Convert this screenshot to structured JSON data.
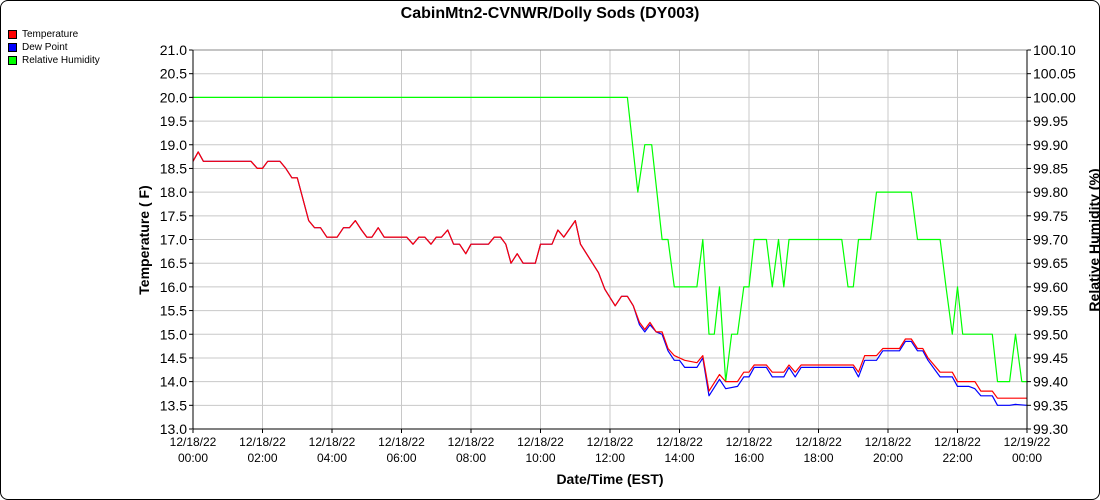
{
  "chart_data": {
    "type": "line",
    "title": "CabinMtn2-CVNWR/Dolly Sods (DY003)",
    "xlabel": "Date/Time (EST)",
    "ylabel": "Temperature ( F)",
    "y2label": "Relative Humidity (%)",
    "ylim": [
      13.0,
      21.0
    ],
    "y2lim": [
      99.3,
      100.1
    ],
    "xlim_hours": [
      0,
      24
    ],
    "grid": true,
    "legend_position": "top-left",
    "y_ticks": [
      "13.0",
      "13.5",
      "14.0",
      "14.5",
      "15.0",
      "15.5",
      "16.0",
      "16.5",
      "17.0",
      "17.5",
      "18.0",
      "18.5",
      "19.0",
      "19.5",
      "20.0",
      "20.5",
      "21.0"
    ],
    "y2_ticks": [
      "99.30",
      "99.35",
      "99.40",
      "99.45",
      "99.50",
      "99.55",
      "99.60",
      "99.65",
      "99.70",
      "99.75",
      "99.80",
      "99.85",
      "99.90",
      "99.95",
      "100.00",
      "100.05",
      "100.10"
    ],
    "x_ticks": [
      {
        "h": 0,
        "date": "12/18/22",
        "time": "00:00"
      },
      {
        "h": 2,
        "date": "12/18/22",
        "time": "02:00"
      },
      {
        "h": 4,
        "date": "12/18/22",
        "time": "04:00"
      },
      {
        "h": 6,
        "date": "12/18/22",
        "time": "06:00"
      },
      {
        "h": 8,
        "date": "12/18/22",
        "time": "08:00"
      },
      {
        "h": 10,
        "date": "12/18/22",
        "time": "10:00"
      },
      {
        "h": 12,
        "date": "12/18/22",
        "time": "12:00"
      },
      {
        "h": 14,
        "date": "12/18/22",
        "time": "14:00"
      },
      {
        "h": 16,
        "date": "12/18/22",
        "time": "16:00"
      },
      {
        "h": 18,
        "date": "12/18/22",
        "time": "18:00"
      },
      {
        "h": 20,
        "date": "12/18/22",
        "time": "20:00"
      },
      {
        "h": 22,
        "date": "12/18/22",
        "time": "22:00"
      },
      {
        "h": 24,
        "date": "12/19/22",
        "time": "00:00"
      }
    ],
    "series": [
      {
        "name": "Temperature",
        "color": "#ff0000",
        "axis": "left",
        "points": [
          [
            0,
            18.65
          ],
          [
            0.15,
            18.85
          ],
          [
            0.3,
            18.65
          ],
          [
            1,
            18.65
          ],
          [
            1.67,
            18.65
          ],
          [
            1.85,
            18.5
          ],
          [
            2,
            18.5
          ],
          [
            2.15,
            18.65
          ],
          [
            2.5,
            18.65
          ],
          [
            2.67,
            18.5
          ],
          [
            2.85,
            18.3
          ],
          [
            3,
            18.3
          ],
          [
            3.33,
            17.4
          ],
          [
            3.5,
            17.25
          ],
          [
            3.67,
            17.25
          ],
          [
            3.85,
            17.05
          ],
          [
            4.15,
            17.05
          ],
          [
            4.33,
            17.25
          ],
          [
            4.5,
            17.25
          ],
          [
            4.67,
            17.4
          ],
          [
            4.85,
            17.2
          ],
          [
            5,
            17.05
          ],
          [
            5.15,
            17.05
          ],
          [
            5.33,
            17.25
          ],
          [
            5.5,
            17.05
          ],
          [
            6,
            17.05
          ],
          [
            6.15,
            17.05
          ],
          [
            6.33,
            16.9
          ],
          [
            6.5,
            17.05
          ],
          [
            6.67,
            17.05
          ],
          [
            6.85,
            16.9
          ],
          [
            7,
            17.05
          ],
          [
            7.15,
            17.05
          ],
          [
            7.33,
            17.2
          ],
          [
            7.5,
            16.9
          ],
          [
            7.67,
            16.9
          ],
          [
            7.85,
            16.7
          ],
          [
            8,
            16.9
          ],
          [
            8.5,
            16.9
          ],
          [
            8.67,
            17.05
          ],
          [
            8.85,
            17.05
          ],
          [
            9,
            16.9
          ],
          [
            9.15,
            16.5
          ],
          [
            9.33,
            16.7
          ],
          [
            9.5,
            16.5
          ],
          [
            9.85,
            16.5
          ],
          [
            10,
            16.9
          ],
          [
            10.33,
            16.9
          ],
          [
            10.5,
            17.2
          ],
          [
            10.67,
            17.05
          ],
          [
            11,
            17.4
          ],
          [
            11.15,
            16.9
          ],
          [
            11.67,
            16.3
          ],
          [
            11.85,
            15.95
          ],
          [
            12.15,
            15.6
          ],
          [
            12.33,
            15.8
          ],
          [
            12.5,
            15.8
          ],
          [
            12.67,
            15.6
          ],
          [
            12.85,
            15.25
          ],
          [
            13,
            15.1
          ],
          [
            13.15,
            15.25
          ],
          [
            13.33,
            15.05
          ],
          [
            13.5,
            15.05
          ],
          [
            13.67,
            14.7
          ],
          [
            13.85,
            14.55
          ],
          [
            14,
            14.5
          ],
          [
            14.15,
            14.45
          ],
          [
            14.5,
            14.4
          ],
          [
            14.67,
            14.55
          ],
          [
            14.85,
            13.8
          ],
          [
            15.15,
            14.15
          ],
          [
            15.33,
            14.0
          ],
          [
            15.67,
            14.0
          ],
          [
            15.85,
            14.2
          ],
          [
            16,
            14.2
          ],
          [
            16.15,
            14.35
          ],
          [
            16.5,
            14.35
          ],
          [
            16.67,
            14.2
          ],
          [
            17,
            14.2
          ],
          [
            17.15,
            14.35
          ],
          [
            17.33,
            14.2
          ],
          [
            17.5,
            14.35
          ],
          [
            18.5,
            14.35
          ],
          [
            19,
            14.35
          ],
          [
            19.15,
            14.2
          ],
          [
            19.33,
            14.55
          ],
          [
            19.67,
            14.55
          ],
          [
            19.85,
            14.7
          ],
          [
            20.33,
            14.7
          ],
          [
            20.5,
            14.9
          ],
          [
            20.67,
            14.9
          ],
          [
            20.85,
            14.7
          ],
          [
            21,
            14.7
          ],
          [
            21.15,
            14.5
          ],
          [
            21.5,
            14.2
          ],
          [
            21.85,
            14.2
          ],
          [
            22,
            14.0
          ],
          [
            22.33,
            14.0
          ],
          [
            22.5,
            14.0
          ],
          [
            22.67,
            13.8
          ],
          [
            23,
            13.8
          ],
          [
            23.15,
            13.65
          ],
          [
            23.5,
            13.65
          ],
          [
            24,
            13.65
          ]
        ]
      },
      {
        "name": "Dew Point",
        "color": "#0000ff",
        "axis": "left",
        "points": [
          [
            0,
            18.65
          ],
          [
            0.15,
            18.85
          ],
          [
            0.3,
            18.65
          ],
          [
            1,
            18.65
          ],
          [
            1.67,
            18.65
          ],
          [
            1.85,
            18.5
          ],
          [
            2,
            18.5
          ],
          [
            2.15,
            18.65
          ],
          [
            2.5,
            18.65
          ],
          [
            2.67,
            18.5
          ],
          [
            2.85,
            18.3
          ],
          [
            3,
            18.3
          ],
          [
            3.33,
            17.4
          ],
          [
            3.5,
            17.25
          ],
          [
            3.67,
            17.25
          ],
          [
            3.85,
            17.05
          ],
          [
            4.15,
            17.05
          ],
          [
            4.33,
            17.25
          ],
          [
            4.5,
            17.25
          ],
          [
            4.67,
            17.4
          ],
          [
            4.85,
            17.2
          ],
          [
            5,
            17.05
          ],
          [
            5.15,
            17.05
          ],
          [
            5.33,
            17.25
          ],
          [
            5.5,
            17.05
          ],
          [
            6,
            17.05
          ],
          [
            6.15,
            17.05
          ],
          [
            6.33,
            16.9
          ],
          [
            6.5,
            17.05
          ],
          [
            6.67,
            17.05
          ],
          [
            6.85,
            16.9
          ],
          [
            7,
            17.05
          ],
          [
            7.15,
            17.05
          ],
          [
            7.33,
            17.2
          ],
          [
            7.5,
            16.9
          ],
          [
            7.67,
            16.9
          ],
          [
            7.85,
            16.7
          ],
          [
            8,
            16.9
          ],
          [
            8.5,
            16.9
          ],
          [
            8.67,
            17.05
          ],
          [
            8.85,
            17.05
          ],
          [
            9,
            16.9
          ],
          [
            9.15,
            16.5
          ],
          [
            9.33,
            16.7
          ],
          [
            9.5,
            16.5
          ],
          [
            9.85,
            16.5
          ],
          [
            10,
            16.9
          ],
          [
            10.33,
            16.9
          ],
          [
            10.5,
            17.2
          ],
          [
            10.67,
            17.05
          ],
          [
            11,
            17.4
          ],
          [
            11.15,
            16.9
          ],
          [
            11.67,
            16.3
          ],
          [
            11.85,
            15.95
          ],
          [
            12.15,
            15.6
          ],
          [
            12.33,
            15.8
          ],
          [
            12.5,
            15.8
          ],
          [
            12.67,
            15.6
          ],
          [
            12.85,
            15.2
          ],
          [
            13,
            15.05
          ],
          [
            13.15,
            15.2
          ],
          [
            13.33,
            15.05
          ],
          [
            13.5,
            15.0
          ],
          [
            13.67,
            14.65
          ],
          [
            13.85,
            14.45
          ],
          [
            14,
            14.45
          ],
          [
            14.15,
            14.3
          ],
          [
            14.5,
            14.3
          ],
          [
            14.67,
            14.5
          ],
          [
            14.85,
            13.7
          ],
          [
            15.15,
            14.05
          ],
          [
            15.33,
            13.85
          ],
          [
            15.67,
            13.9
          ],
          [
            15.85,
            14.1
          ],
          [
            16,
            14.1
          ],
          [
            16.15,
            14.3
          ],
          [
            16.5,
            14.3
          ],
          [
            16.67,
            14.1
          ],
          [
            17,
            14.1
          ],
          [
            17.15,
            14.3
          ],
          [
            17.33,
            14.1
          ],
          [
            17.5,
            14.3
          ],
          [
            18.5,
            14.3
          ],
          [
            19,
            14.3
          ],
          [
            19.15,
            14.1
          ],
          [
            19.33,
            14.45
          ],
          [
            19.67,
            14.45
          ],
          [
            19.85,
            14.65
          ],
          [
            20.33,
            14.65
          ],
          [
            20.5,
            14.85
          ],
          [
            20.67,
            14.85
          ],
          [
            20.85,
            14.65
          ],
          [
            21,
            14.65
          ],
          [
            21.15,
            14.45
          ],
          [
            21.5,
            14.1
          ],
          [
            21.85,
            14.1
          ],
          [
            22,
            13.9
          ],
          [
            22.33,
            13.9
          ],
          [
            22.5,
            13.85
          ],
          [
            22.67,
            13.7
          ],
          [
            23,
            13.7
          ],
          [
            23.15,
            13.5
          ],
          [
            23.5,
            13.5
          ],
          [
            23.67,
            13.52
          ],
          [
            24,
            13.5
          ]
        ]
      },
      {
        "name": "Relative Humidity",
        "color": "#00ff00",
        "axis": "right",
        "points": [
          [
            0,
            100.0
          ],
          [
            12.5,
            100.0
          ],
          [
            12.8,
            99.8
          ],
          [
            13.0,
            99.9
          ],
          [
            13.2,
            99.9
          ],
          [
            13.5,
            99.7
          ],
          [
            13.67,
            99.7
          ],
          [
            13.85,
            99.6
          ],
          [
            14.5,
            99.6
          ],
          [
            14.67,
            99.7
          ],
          [
            14.85,
            99.5
          ],
          [
            15.0,
            99.5
          ],
          [
            15.15,
            99.6
          ],
          [
            15.33,
            99.4
          ],
          [
            15.5,
            99.5
          ],
          [
            15.67,
            99.5
          ],
          [
            15.85,
            99.6
          ],
          [
            16.0,
            99.6
          ],
          [
            16.15,
            99.7
          ],
          [
            16.5,
            99.7
          ],
          [
            16.67,
            99.6
          ],
          [
            16.85,
            99.7
          ],
          [
            17.0,
            99.6
          ],
          [
            17.15,
            99.7
          ],
          [
            18.5,
            99.7
          ],
          [
            18.67,
            99.7
          ],
          [
            18.85,
            99.6
          ],
          [
            19.0,
            99.6
          ],
          [
            19.15,
            99.7
          ],
          [
            19.5,
            99.7
          ],
          [
            19.67,
            99.8
          ],
          [
            20.67,
            99.8
          ],
          [
            20.85,
            99.7
          ],
          [
            21.5,
            99.7
          ],
          [
            21.67,
            99.6
          ],
          [
            21.85,
            99.5
          ],
          [
            22.0,
            99.6
          ],
          [
            22.15,
            99.5
          ],
          [
            22.67,
            99.5
          ],
          [
            23.0,
            99.5
          ],
          [
            23.15,
            99.4
          ],
          [
            23.5,
            99.4
          ],
          [
            23.67,
            99.5
          ],
          [
            23.85,
            99.4
          ],
          [
            24,
            99.4
          ]
        ]
      }
    ]
  }
}
